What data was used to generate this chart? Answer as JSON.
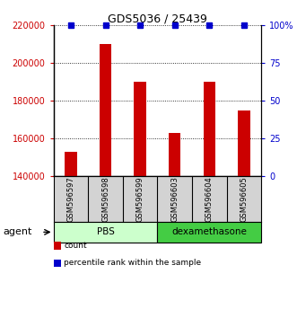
{
  "title": "GDS5036 / 25439",
  "categories": [
    "GSM596597",
    "GSM596598",
    "GSM596599",
    "GSM596603",
    "GSM596604",
    "GSM596605"
  ],
  "bar_values": [
    153000,
    210000,
    190000,
    163000,
    190000,
    175000
  ],
  "percentile_values": [
    100,
    100,
    100,
    100,
    100,
    100
  ],
  "bar_color": "#cc0000",
  "percentile_color": "#0000cc",
  "ylim_left": [
    140000,
    220000
  ],
  "ylim_right": [
    0,
    100
  ],
  "yticks_left": [
    140000,
    160000,
    180000,
    200000,
    220000
  ],
  "yticks_right": [
    0,
    25,
    50,
    75,
    100
  ],
  "ytick_labels_left": [
    "140000",
    "160000",
    "180000",
    "200000",
    "220000"
  ],
  "ytick_labels_right": [
    "0",
    "25",
    "50",
    "75",
    "100%"
  ],
  "groups": [
    {
      "label": "PBS",
      "start": 0,
      "end": 3,
      "color": "#ccffcc"
    },
    {
      "label": "dexamethasone",
      "start": 3,
      "end": 6,
      "color": "#44cc44"
    }
  ],
  "group_row_label": "agent",
  "background_color": "#ffffff",
  "bar_width": 0.35,
  "legend_items": [
    {
      "label": "count",
      "color": "#cc0000"
    },
    {
      "label": "percentile rank within the sample",
      "color": "#0000cc"
    }
  ]
}
